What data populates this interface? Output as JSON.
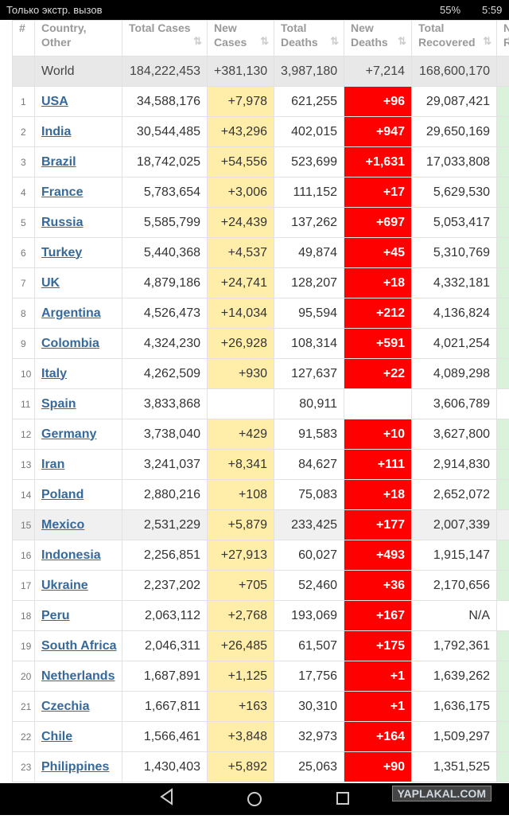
{
  "status_bar": {
    "carrier": "Только экстр. вызов",
    "battery": "55%",
    "time": "5:59"
  },
  "table": {
    "headers": [
      "#",
      "Country, Other",
      "Total Cases",
      "New Cases",
      "Total Deaths",
      "New Deaths",
      "Total Recovered",
      "New Recovered"
    ],
    "world": [
      "World",
      "184,222,453",
      "+381,130",
      "3,987,180",
      "+7,214",
      "168,600,170"
    ],
    "rows": [
      [
        "1",
        "USA",
        "34,588,176",
        "+7,978",
        "621,255",
        "+96",
        "29,087,421"
      ],
      [
        "2",
        "India",
        "30,544,485",
        "+43,296",
        "402,015",
        "+947",
        "29,650,169"
      ],
      [
        "3",
        "Brazil",
        "18,742,025",
        "+54,556",
        "523,699",
        "+1,631",
        "17,033,808"
      ],
      [
        "4",
        "France",
        "5,783,654",
        "+3,006",
        "111,152",
        "+17",
        "5,629,530"
      ],
      [
        "5",
        "Russia",
        "5,585,799",
        "+24,439",
        "137,262",
        "+697",
        "5,053,417"
      ],
      [
        "6",
        "Turkey",
        "5,440,368",
        "+4,537",
        "49,874",
        "+45",
        "5,310,769"
      ],
      [
        "7",
        "UK",
        "4,879,186",
        "+24,741",
        "128,207",
        "+18",
        "4,332,181"
      ],
      [
        "8",
        "Argentina",
        "4,526,473",
        "+14,034",
        "95,594",
        "+212",
        "4,136,824"
      ],
      [
        "9",
        "Colombia",
        "4,324,230",
        "+26,928",
        "108,314",
        "+591",
        "4,021,254"
      ],
      [
        "10",
        "Italy",
        "4,262,509",
        "+930",
        "127,637",
        "+22",
        "4,089,298"
      ],
      [
        "11",
        "Spain",
        "3,833,868",
        null,
        "80,911",
        null,
        "3,606,789"
      ],
      [
        "12",
        "Germany",
        "3,738,040",
        "+429",
        "91,583",
        "+10",
        "3,627,800"
      ],
      [
        "13",
        "Iran",
        "3,241,037",
        "+8,341",
        "84,627",
        "+111",
        "2,914,830"
      ],
      [
        "14",
        "Poland",
        "2,880,216",
        "+108",
        "75,083",
        "+18",
        "2,652,072"
      ],
      [
        "15",
        "Mexico",
        "2,531,229",
        "+5,879",
        "233,425",
        "+177",
        "2,007,339"
      ],
      [
        "16",
        "Indonesia",
        "2,256,851",
        "+27,913",
        "60,027",
        "+493",
        "1,915,147"
      ],
      [
        "17",
        "Ukraine",
        "2,237,202",
        "+705",
        "52,460",
        "+36",
        "2,170,656"
      ],
      [
        "18",
        "Peru",
        "2,063,112",
        "+2,768",
        "193,069",
        "+167",
        "N/A"
      ],
      [
        "19",
        "South Africa",
        "2,046,311",
        "+26,485",
        "61,507",
        "+175",
        "1,792,361"
      ],
      [
        "20",
        "Netherlands",
        "1,687,891",
        "+1,125",
        "17,756",
        "+1",
        "1,639,262"
      ],
      [
        "21",
        "Czechia",
        "1,667,811",
        "+163",
        "30,310",
        "+1",
        "1,636,175"
      ],
      [
        "22",
        "Chile",
        "1,566,461",
        "+3,848",
        "32,973",
        "+164",
        "1,509,297"
      ],
      [
        "23",
        "Philippines",
        "1,430,403",
        "+5,892",
        "25,063",
        "+90",
        "1,351,525"
      ]
    ]
  },
  "watermark": "YAPLAKAL.COM"
}
